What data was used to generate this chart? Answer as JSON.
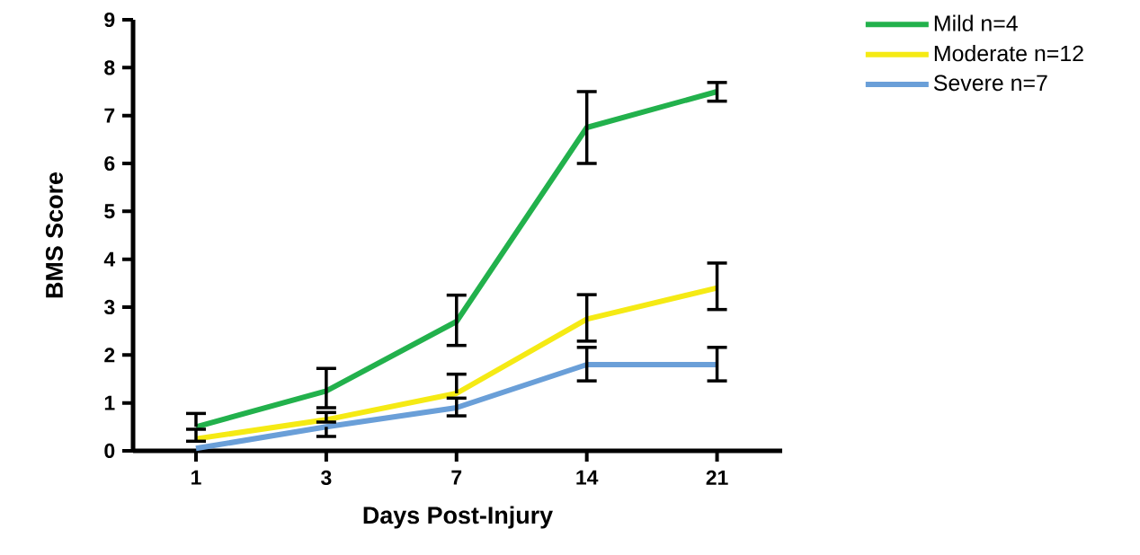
{
  "chart_data": {
    "type": "line",
    "xlabel": "Days Post-Injury",
    "ylabel": "BMS Score",
    "categories": [
      "1",
      "3",
      "7",
      "14",
      "21"
    ],
    "series": [
      {
        "name": "Mild n=4",
        "color": "#22b14c",
        "values": [
          0.5,
          1.25,
          2.7,
          6.75,
          7.5
        ],
        "errors": [
          [
            0.5,
            0.78
          ],
          [
            0.9,
            1.72
          ],
          [
            2.2,
            3.25
          ],
          [
            6.0,
            7.5
          ],
          [
            7.3,
            7.69
          ]
        ]
      },
      {
        "name": "Moderate n=12",
        "color": "#f5ea14",
        "values": [
          0.25,
          0.65,
          1.2,
          2.75,
          3.4
        ],
        "errors": [
          [
            0.2,
            0.45
          ],
          [
            0.6,
            0.8
          ],
          [
            1.2,
            1.6
          ],
          [
            2.29,
            3.26
          ],
          [
            2.95,
            3.92
          ]
        ]
      },
      {
        "name": "Severe n=7",
        "color": "#6a9fd8",
        "values": [
          0.05,
          0.5,
          0.9,
          1.8,
          1.8
        ],
        "errors": [
          null,
          [
            0.3,
            0.5
          ],
          [
            0.73,
            1.1
          ],
          [
            1.46,
            2.16
          ],
          [
            1.46,
            2.16
          ]
        ]
      }
    ],
    "ylim": [
      0,
      9
    ],
    "yticks": [
      0,
      1,
      2,
      3,
      4,
      5,
      6,
      7,
      8,
      9
    ],
    "legend": "right",
    "marker": "none",
    "line_style": "solid",
    "grid": false
  }
}
